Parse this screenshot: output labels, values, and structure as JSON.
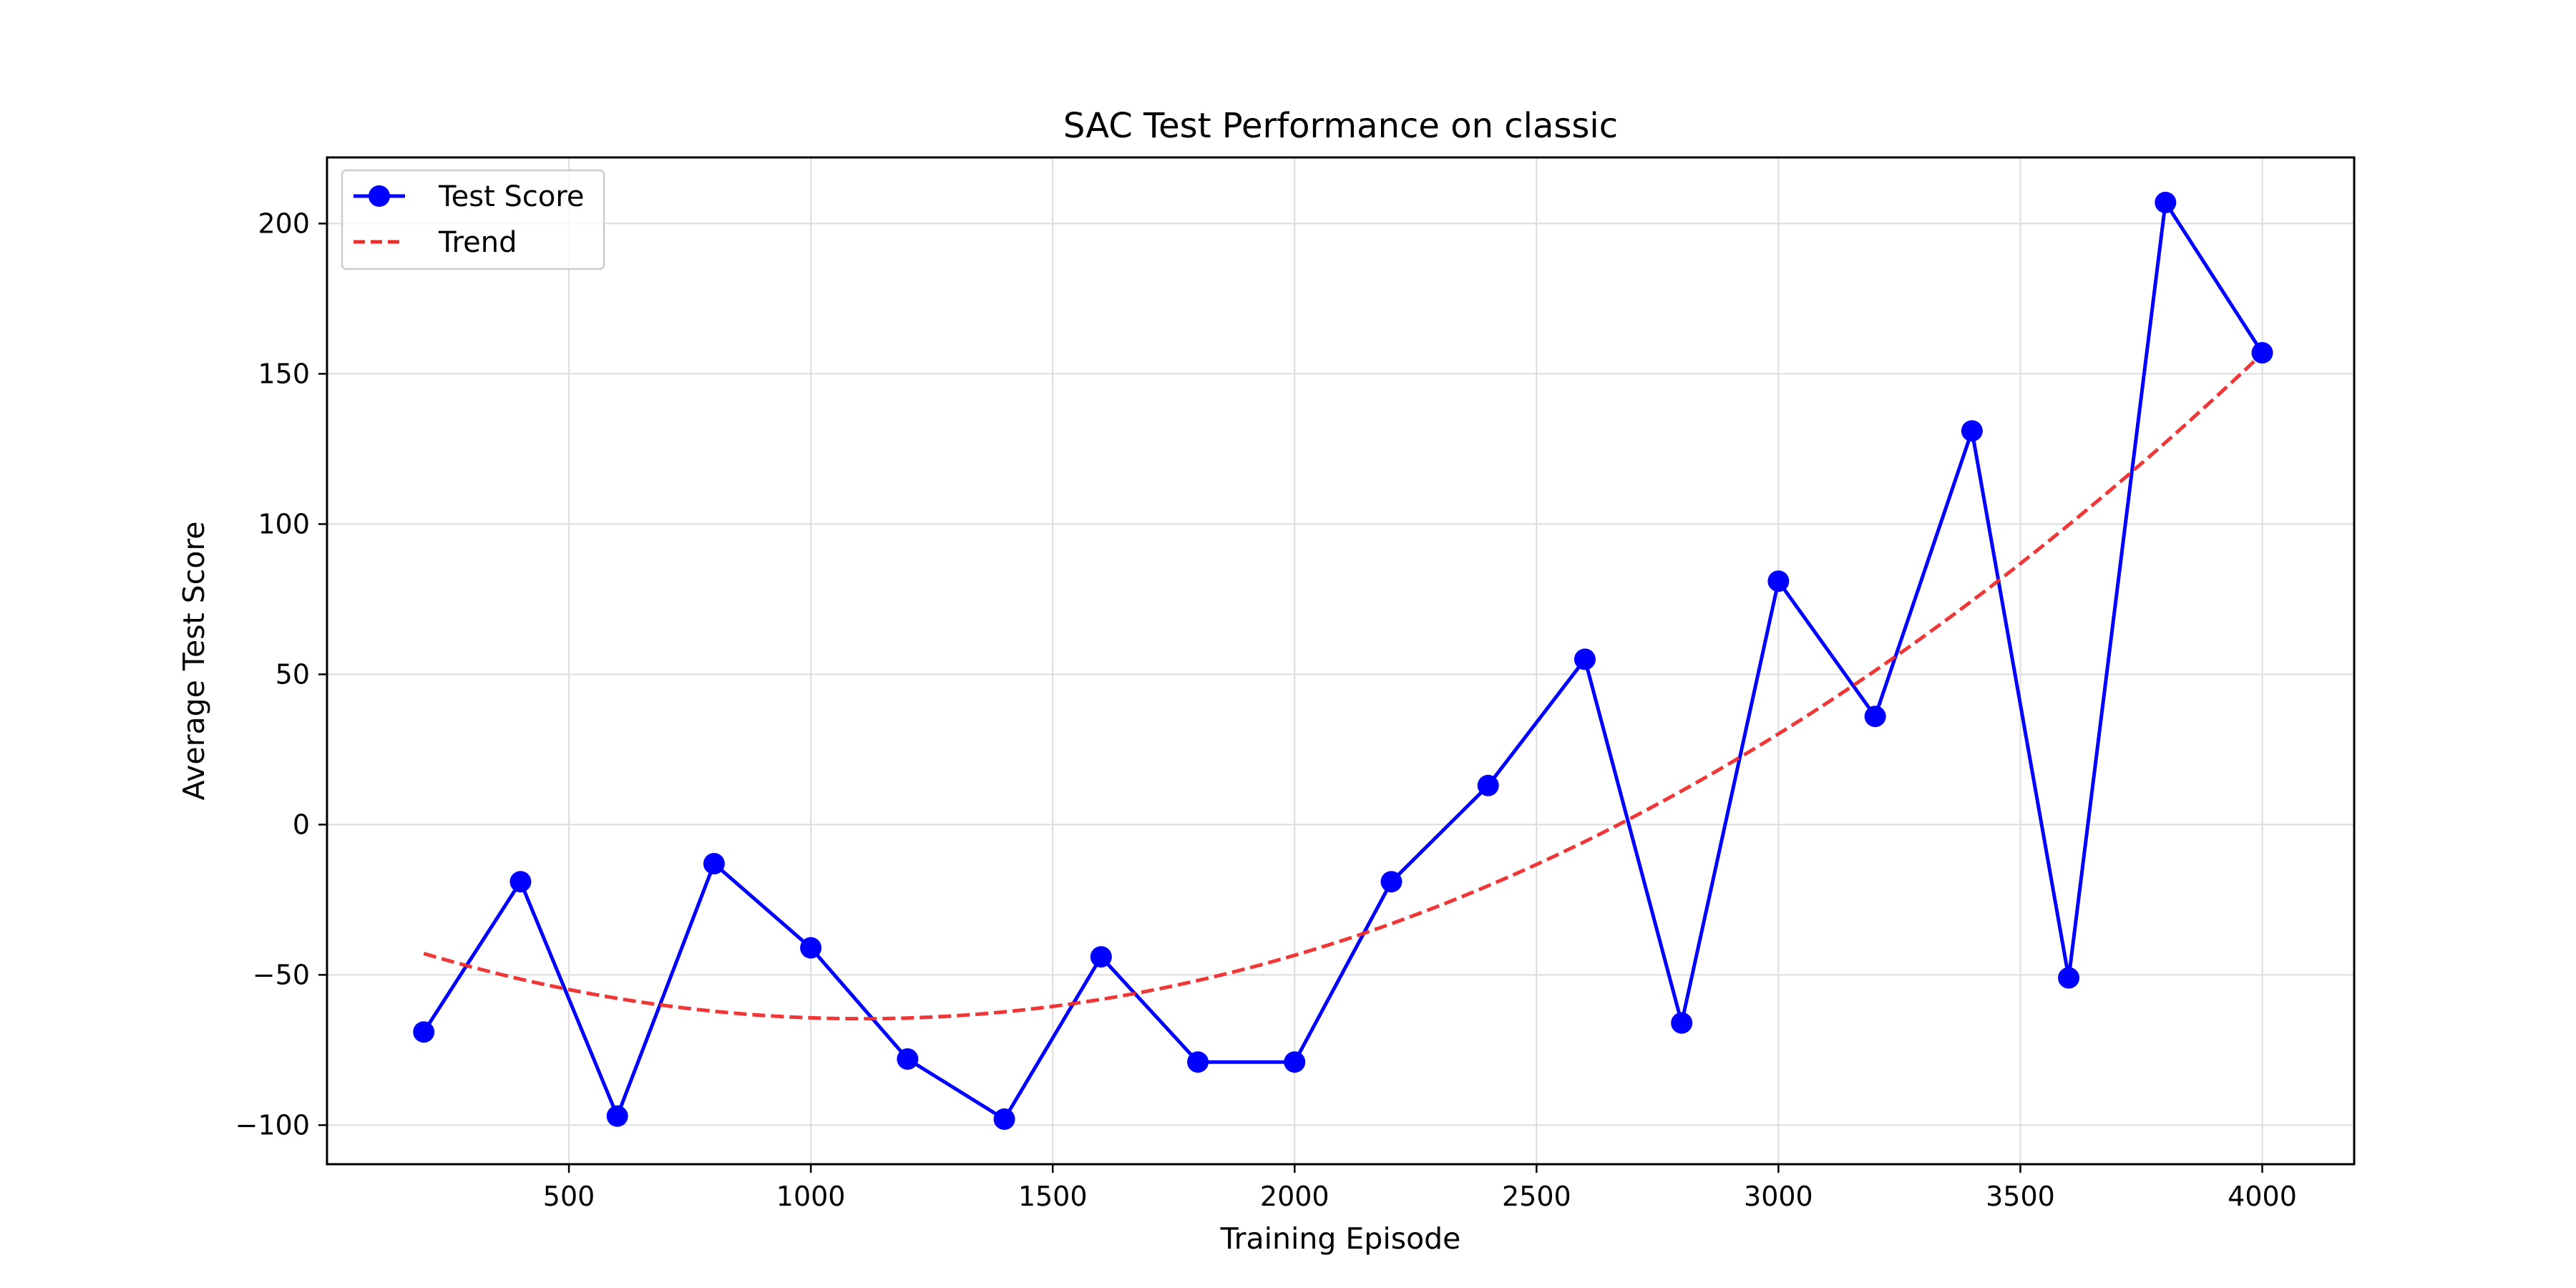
{
  "chart_data": {
    "type": "line",
    "title": "SAC Test Performance on classic",
    "xlabel": "Training Episode",
    "ylabel": "Average Test Score",
    "xlim": [
      0,
      4190
    ],
    "ylim": [
      -113,
      222
    ],
    "xticks": [
      500,
      1000,
      1500,
      2000,
      2500,
      3000,
      3500,
      4000
    ],
    "yticks": [
      -100,
      -50,
      0,
      50,
      100,
      150,
      200
    ],
    "grid": true,
    "legend_position": "top-left",
    "series": [
      {
        "name": "Test Score",
        "color": "#0000ff",
        "style": "solid-marker",
        "x": [
          200,
          400,
          600,
          800,
          1000,
          1200,
          1400,
          1600,
          1800,
          2000,
          2200,
          2400,
          2600,
          2800,
          3000,
          3200,
          3400,
          3600,
          3800,
          4000
        ],
        "y": [
          -69,
          -19,
          -97,
          -13,
          -41,
          -78,
          -98,
          -44,
          -79,
          -79,
          -19,
          13,
          55,
          -66,
          81,
          36,
          131,
          -51,
          207,
          157
        ]
      },
      {
        "name": "Trend",
        "color": "#ee2c2c",
        "style": "dashed",
        "x": [
          200,
          400,
          600,
          800,
          1000,
          1200,
          1400,
          1600,
          1800,
          2000,
          2200,
          2400,
          2600,
          2800,
          3000,
          3200,
          3400,
          3600,
          3800,
          4000
        ],
        "y": [
          -44,
          -51,
          -57,
          -61,
          -64,
          -65,
          -63,
          -59,
          -52,
          -43,
          -33,
          -21,
          -5,
          11,
          31,
          52,
          74,
          99,
          127,
          157
        ]
      }
    ]
  }
}
